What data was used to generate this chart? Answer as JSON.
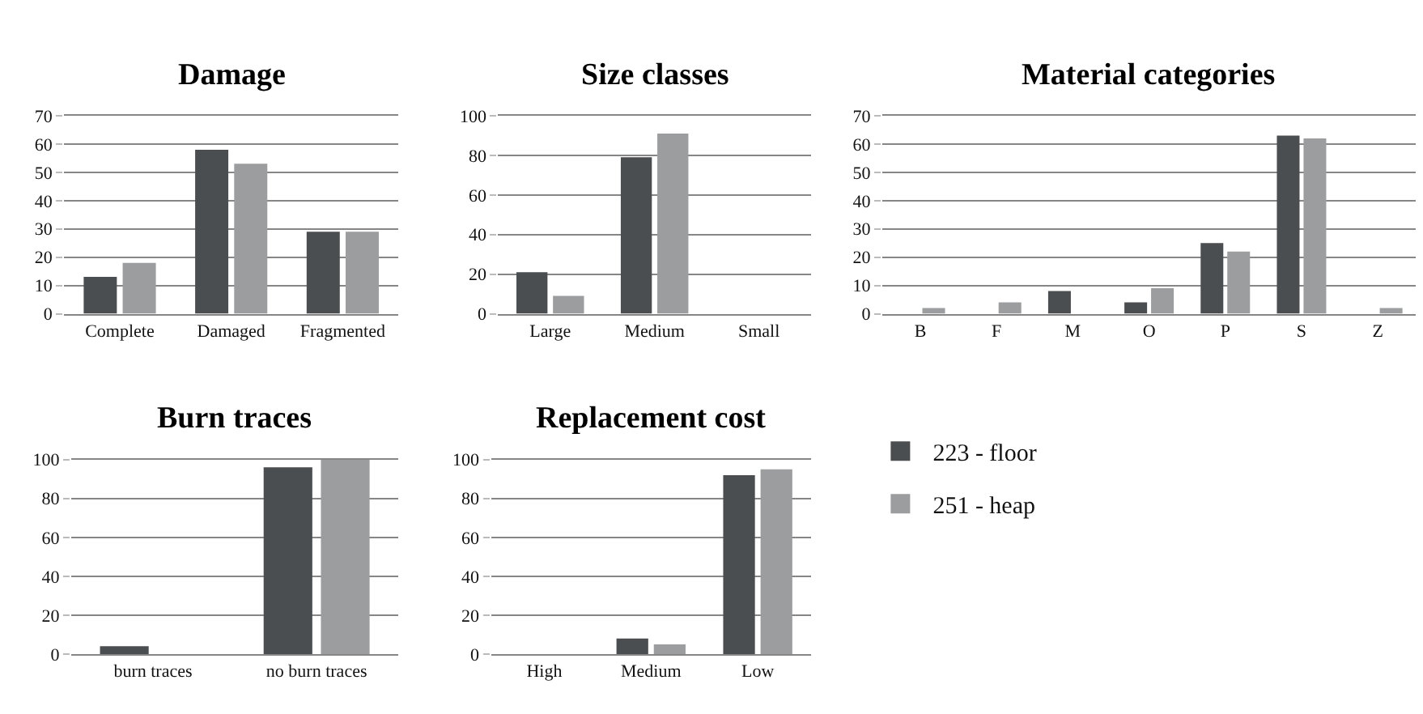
{
  "chart_data": [
    {
      "type": "bar",
      "title": "Damage",
      "categories": [
        "Complete",
        "Damaged",
        "Fragmented"
      ],
      "ylim": [
        0,
        70
      ],
      "yticks": [
        0,
        10,
        20,
        30,
        40,
        50,
        60,
        70
      ],
      "grid": "y",
      "legend": "right",
      "series": [
        {
          "name": "223 - floor",
          "color": "#4b4e50",
          "values": [
            13,
            58,
            29
          ]
        },
        {
          "name": "251 - heap",
          "color": "#9b9d9f",
          "values": [
            18,
            53,
            29
          ]
        }
      ]
    },
    {
      "type": "bar",
      "title": "Size classes",
      "categories": [
        "Large",
        "Medium",
        "Small"
      ],
      "ylim": [
        0,
        100
      ],
      "yticks": [
        0,
        20,
        40,
        60,
        80,
        100
      ],
      "grid": "y",
      "legend": "right",
      "series": [
        {
          "name": "223 - floor",
          "color": "#4b4e50",
          "values": [
            21,
            79,
            0
          ]
        },
        {
          "name": "251 - heap",
          "color": "#9b9d9f",
          "values": [
            9,
            91,
            0
          ]
        }
      ]
    },
    {
      "type": "bar",
      "title": "Material categories",
      "categories": [
        "B",
        "F",
        "M",
        "O",
        "P",
        "S",
        "Z"
      ],
      "ylim": [
        0,
        70
      ],
      "yticks": [
        0,
        10,
        20,
        30,
        40,
        50,
        60,
        70
      ],
      "grid": "y",
      "legend": "right",
      "series": [
        {
          "name": "223 - floor",
          "color": "#4b4e50",
          "values": [
            0,
            0,
            8,
            4,
            25,
            63,
            0
          ]
        },
        {
          "name": "251 - heap",
          "color": "#9b9d9f",
          "values": [
            2,
            4,
            0,
            9,
            22,
            62,
            2
          ]
        }
      ]
    },
    {
      "type": "bar",
      "title": "Burn traces",
      "categories": [
        "burn traces",
        "no burn traces"
      ],
      "ylim": [
        0,
        100
      ],
      "yticks": [
        0,
        20,
        40,
        60,
        80,
        100
      ],
      "grid": "y",
      "legend": "right",
      "series": [
        {
          "name": "223 - floor",
          "color": "#4b4e50",
          "values": [
            4,
            96
          ]
        },
        {
          "name": "251 - heap",
          "color": "#9b9d9f",
          "values": [
            0,
            100
          ]
        }
      ]
    },
    {
      "type": "bar",
      "title": "Replacement cost",
      "categories": [
        "High",
        "Medium",
        "Low"
      ],
      "ylim": [
        0,
        100
      ],
      "yticks": [
        0,
        20,
        40,
        60,
        80,
        100
      ],
      "grid": "y",
      "legend": "right",
      "series": [
        {
          "name": "223 - floor",
          "color": "#4b4e50",
          "values": [
            0,
            8,
            92
          ]
        },
        {
          "name": "251 - heap",
          "color": "#9b9d9f",
          "values": [
            0,
            5,
            95
          ]
        }
      ]
    }
  ]
}
